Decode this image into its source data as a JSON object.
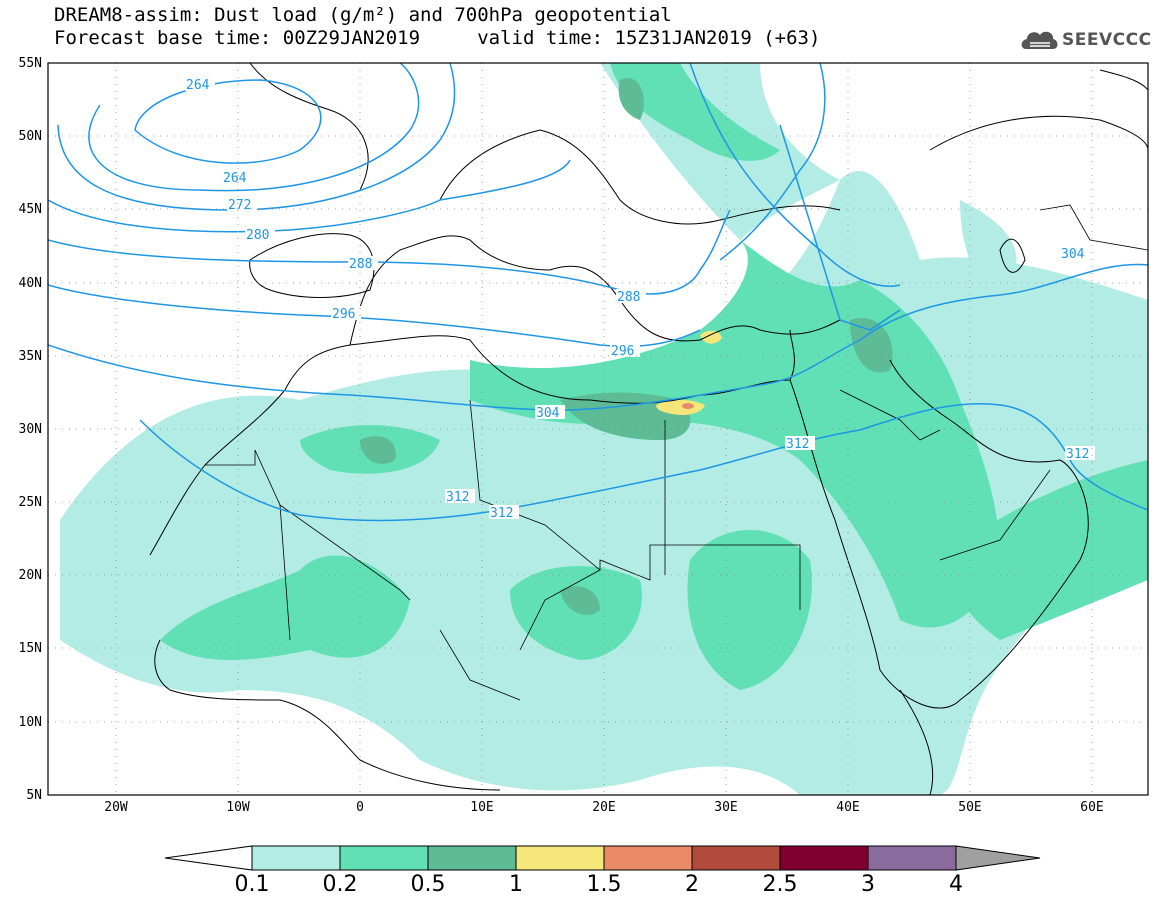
{
  "title": {
    "line1": "DREAM8-assim: Dust load (g/m²) and 700hPa geopotential",
    "line2": "Forecast base time: 00Z29JAN2019     valid time: 15Z31JAN2019 (+63)"
  },
  "logo": {
    "text": "SEEVCCC",
    "icon": "cloud-logo-icon"
  },
  "axes": {
    "lat_labels": [
      "55N",
      "50N",
      "45N",
      "40N",
      "35N",
      "30N",
      "25N",
      "20N",
      "15N",
      "10N",
      "5N"
    ],
    "lon_labels": [
      "20W",
      "10W",
      "0",
      "10E",
      "20E",
      "30E",
      "40E",
      "50E",
      "60E"
    ]
  },
  "contours": {
    "labels": [
      "264",
      "264",
      "272",
      "280",
      "288",
      "296",
      "288",
      "296",
      "304",
      "304",
      "312",
      "312",
      "312",
      "312"
    ]
  },
  "colorbar": {
    "labels": [
      "0.1",
      "0.2",
      "0.5",
      "1",
      "1.5",
      "2",
      "2.5",
      "3",
      "4"
    ],
    "colors": [
      "#ffffff",
      "#b3ece4",
      "#60e0b4",
      "#5dbc96",
      "#f5e67a",
      "#e98b67",
      "#b04b3c",
      "#800030",
      "#8b6a9e",
      "#a0a0a0"
    ]
  },
  "colors": {
    "contour": "#1e96e6",
    "dust_light": "#b3ece4",
    "dust_mid": "#60e0b4",
    "dust_dark": "#5dbc96",
    "dust_yellow": "#f5e67a",
    "dust_orange": "#e98b67"
  }
}
